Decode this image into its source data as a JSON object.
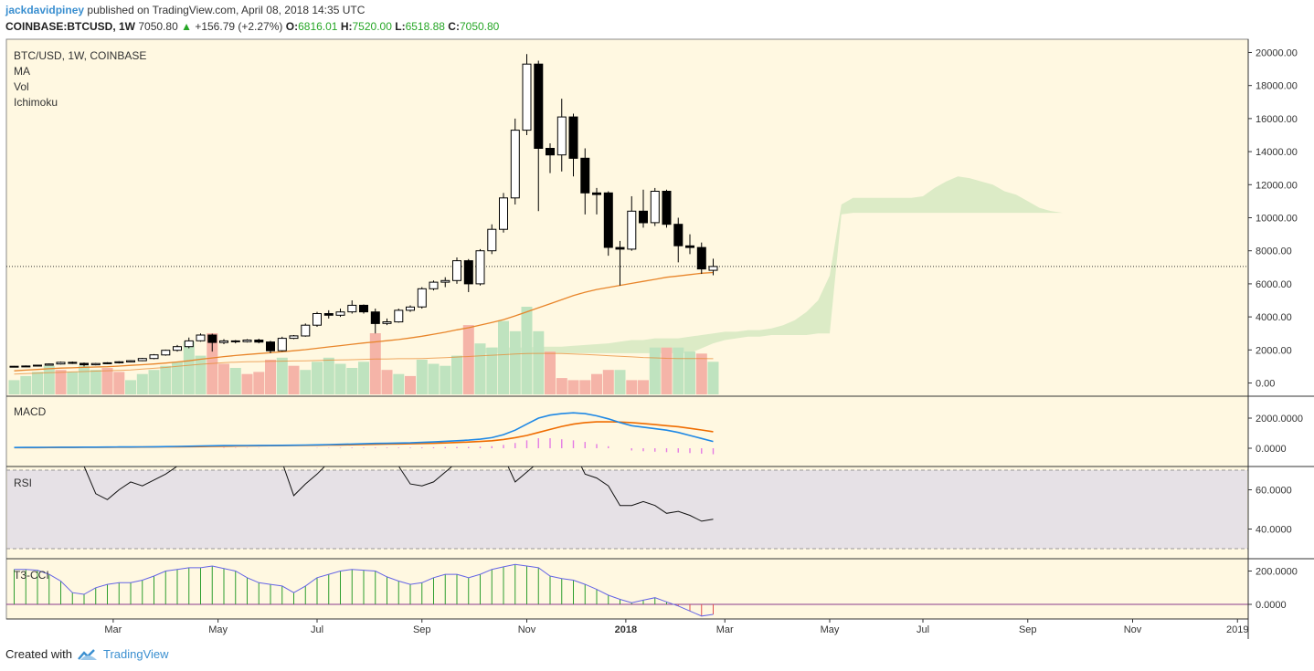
{
  "header": {
    "author": "jackdavidpiney",
    "published_text": "published on TradingView.com, April 08, 2018 14:35 UTC",
    "symbol": "COINBASE:BTCUSD, 1W",
    "last": "7050.80",
    "change_arrow": "▲",
    "change": "+156.79 (+2.27%)",
    "o_label": "O:",
    "o_val": "6816.01",
    "h_label": "H:",
    "h_val": "7520.00",
    "l_label": "L:",
    "l_val": "6518.88",
    "c_label": "C:",
    "c_val": "7050.80"
  },
  "legend": {
    "title": "BTC/USD, 1W, COINBASE",
    "items": [
      "MA",
      "Vol",
      "Ichimoku"
    ]
  },
  "panes": {
    "macd": "MACD",
    "rsi": "RSI",
    "cci": "T3-CCI"
  },
  "footer": {
    "created": "Created with",
    "brand": "TradingView"
  },
  "colors": {
    "bg": "#fff8e1",
    "up_vol": "#bfe3bf",
    "down_vol": "#f5b4a8",
    "ma": "#e8852a",
    "macd": "#1e88e5",
    "signal": "#ef6c00",
    "hist": "#e47be4",
    "cloud": "#dcebc6",
    "rsi_band": "#e6e1e6",
    "cci_line": "#6464e6",
    "cci_bar": "#2e9e2e"
  },
  "chart_data": {
    "type": "candlestick",
    "price_axis": {
      "ticks": [
        "20000.00",
        "18000.00",
        "16000.00",
        "14000.00",
        "12000.00",
        "10000.00",
        "8000.00",
        "6000.00",
        "4000.00",
        "2000.00",
        "0.00"
      ],
      "ylim": [
        -800,
        20800
      ]
    },
    "macd_axis": {
      "ticks": [
        "2000.0000",
        "0.0000"
      ]
    },
    "rsi_axis": {
      "ticks": [
        "60.0000",
        "40.0000"
      ],
      "band": [
        30,
        70
      ]
    },
    "cci_axis": {
      "ticks": [
        "200.0000",
        "0.0000"
      ]
    },
    "time_axis": [
      {
        "label": "Mar",
        "week": 8.5
      },
      {
        "label": "May",
        "week": 17.5
      },
      {
        "label": "Jul",
        "week": 26
      },
      {
        "label": "Sep",
        "week": 35
      },
      {
        "label": "Nov",
        "week": 44
      },
      {
        "label": "2018",
        "week": 52.5,
        "bold": true
      },
      {
        "label": "Mar",
        "week": 61
      },
      {
        "label": "May",
        "week": 70
      },
      {
        "label": "Jul",
        "week": 78
      },
      {
        "label": "Sep",
        "week": 87
      },
      {
        "label": "Nov",
        "week": 96
      },
      {
        "label": "2019",
        "week": 105
      }
    ],
    "current_price": 7050.8,
    "candles": [
      [
        1000,
        1010,
        980,
        1030
      ],
      [
        1010,
        1030,
        990,
        1060
      ],
      [
        1030,
        1080,
        1020,
        1100
      ],
      [
        1080,
        1150,
        1060,
        1180
      ],
      [
        1150,
        1250,
        1120,
        1290
      ],
      [
        1250,
        1190,
        1150,
        1300
      ],
      [
        1190,
        1100,
        1000,
        1240
      ],
      [
        1100,
        1180,
        1070,
        1210
      ],
      [
        1180,
        1220,
        1150,
        1260
      ],
      [
        1220,
        1280,
        1180,
        1320
      ],
      [
        1280,
        1350,
        1250,
        1380
      ],
      [
        1350,
        1480,
        1320,
        1520
      ],
      [
        1480,
        1700,
        1440,
        1750
      ],
      [
        1700,
        1980,
        1650,
        2020
      ],
      [
        1980,
        2200,
        1900,
        2300
      ],
      [
        2200,
        2550,
        2100,
        2750
      ],
      [
        2550,
        2900,
        2500,
        3000
      ],
      [
        2900,
        2450,
        1900,
        2980
      ],
      [
        2450,
        2550,
        2350,
        2650
      ],
      [
        2550,
        2500,
        2400,
        2600
      ],
      [
        2500,
        2600,
        2450,
        2650
      ],
      [
        2600,
        2480,
        2400,
        2680
      ],
      [
        2480,
        1950,
        1800,
        2550
      ],
      [
        1950,
        2700,
        1900,
        2800
      ],
      [
        2700,
        2850,
        2650,
        2900
      ],
      [
        2850,
        3500,
        2800,
        3600
      ],
      [
        3500,
        4200,
        3400,
        4300
      ],
      [
        4200,
        4100,
        3900,
        4400
      ],
      [
        4100,
        4300,
        4000,
        4500
      ],
      [
        4300,
        4700,
        4200,
        5000
      ],
      [
        4700,
        4300,
        4200,
        4750
      ],
      [
        4300,
        3600,
        3000,
        4500
      ],
      [
        3600,
        3700,
        3500,
        3900
      ],
      [
        3700,
        4400,
        3650,
        4500
      ],
      [
        4400,
        4600,
        4300,
        4700
      ],
      [
        4600,
        5700,
        4500,
        5800
      ],
      [
        5700,
        6100,
        5600,
        6200
      ],
      [
        6100,
        6200,
        5800,
        6400
      ],
      [
        6200,
        7400,
        6000,
        7600
      ],
      [
        7400,
        6000,
        5500,
        7500
      ],
      [
        6000,
        8000,
        5900,
        8100
      ],
      [
        8000,
        9300,
        7800,
        9600
      ],
      [
        9300,
        11200,
        9100,
        11500
      ],
      [
        11200,
        15300,
        10800,
        16000
      ],
      [
        15300,
        19300,
        15000,
        19900
      ],
      [
        19300,
        14200,
        10400,
        19500
      ],
      [
        14200,
        13800,
        12700,
        14500
      ],
      [
        13800,
        16100,
        12800,
        17200
      ],
      [
        16100,
        13600,
        12500,
        16300
      ],
      [
        13600,
        11500,
        10200,
        14200
      ],
      [
        11500,
        11400,
        10200,
        11800
      ],
      [
        11500,
        8200,
        7700,
        11600
      ],
      [
        8200,
        8100,
        5900,
        8600
      ],
      [
        8100,
        10400,
        8000,
        11300
      ],
      [
        10400,
        9700,
        9400,
        11700
      ],
      [
        9700,
        11600,
        9500,
        11800
      ],
      [
        11600,
        9600,
        9400,
        11700
      ],
      [
        9600,
        8300,
        7300,
        10000
      ],
      [
        8300,
        8200,
        7800,
        9000
      ],
      [
        8200,
        6900,
        6600,
        8500
      ],
      [
        6816,
        7050,
        6518,
        7520
      ]
    ],
    "volume": [
      [
        700,
        1
      ],
      [
        900,
        1
      ],
      [
        1100,
        1
      ],
      [
        1400,
        1
      ],
      [
        1200,
        0
      ],
      [
        1100,
        1
      ],
      [
        1400,
        1
      ],
      [
        1200,
        1
      ],
      [
        1300,
        0
      ],
      [
        1100,
        0
      ],
      [
        700,
        1
      ],
      [
        1000,
        1
      ],
      [
        1200,
        1
      ],
      [
        1400,
        1
      ],
      [
        1600,
        1
      ],
      [
        2600,
        1
      ],
      [
        1900,
        1
      ],
      [
        3000,
        0
      ],
      [
        1500,
        0
      ],
      [
        1300,
        1
      ],
      [
        1000,
        0
      ],
      [
        1100,
        0
      ],
      [
        1700,
        0
      ],
      [
        1800,
        1
      ],
      [
        1400,
        0
      ],
      [
        1200,
        1
      ],
      [
        1600,
        1
      ],
      [
        1800,
        1
      ],
      [
        1500,
        1
      ],
      [
        1300,
        1
      ],
      [
        1600,
        1
      ],
      [
        3000,
        0
      ],
      [
        1200,
        0
      ],
      [
        1000,
        1
      ],
      [
        900,
        0
      ],
      [
        1700,
        1
      ],
      [
        1500,
        1
      ],
      [
        1400,
        1
      ],
      [
        1900,
        1
      ],
      [
        3400,
        0
      ],
      [
        2500,
        1
      ],
      [
        2300,
        1
      ],
      [
        3600,
        1
      ],
      [
        3100,
        1
      ],
      [
        4300,
        1
      ],
      [
        3100,
        1
      ],
      [
        2100,
        0
      ],
      [
        800,
        0
      ],
      [
        700,
        0
      ],
      [
        700,
        0
      ],
      [
        1000,
        0
      ],
      [
        1200,
        0
      ],
      [
        1200,
        1
      ],
      [
        700,
        0
      ],
      [
        700,
        0
      ],
      [
        2300,
        1
      ],
      [
        2300,
        0
      ],
      [
        2300,
        1
      ],
      [
        2100,
        1
      ],
      [
        2000,
        0
      ],
      [
        1600,
        1
      ]
    ],
    "ma_short": [
      900,
      950,
      1000,
      1050,
      1100,
      1120,
      1150,
      1180,
      1200,
      1250,
      1300,
      1350,
      1400,
      1470,
      1550,
      1640,
      1750,
      1850,
      1950,
      2030,
      2100,
      2170,
      2230,
      2300,
      2380,
      2460,
      2560,
      2660,
      2760,
      2860,
      2950,
      3030,
      3120,
      3210,
      3320,
      3450,
      3600,
      3750,
      3920,
      4080,
      4270,
      4470,
      4680,
      4950,
      5250,
      5550,
      5850,
      6150,
      6450,
      6700,
      6900,
      7050,
      7200,
      7350,
      7500,
      7650,
      7800,
      7900,
      8000,
      8100,
      8150
    ],
    "vol_ma": [
      1000,
      1020,
      1040,
      1060,
      1080,
      1100,
      1120,
      1140,
      1160,
      1180,
      1200,
      1240,
      1280,
      1320,
      1380,
      1430,
      1480,
      1520,
      1560,
      1580,
      1600,
      1610,
      1620,
      1630,
      1640,
      1650,
      1660,
      1680,
      1690,
      1700,
      1720,
      1740,
      1740,
      1750,
      1750,
      1760,
      1780,
      1800,
      1830,
      1860,
      1890,
      1920,
      1950,
      1980,
      2000,
      2010,
      2010,
      2000,
      1980,
      1960,
      1930,
      1900,
      1870,
      1840,
      1810,
      1790,
      1770,
      1760,
      1760,
      1760,
      1750
    ],
    "cloud": {
      "start": 40,
      "upper": [
        2100,
        2150,
        2150,
        2150,
        2150,
        2200,
        2200,
        2200,
        2250,
        2300,
        2350,
        2400,
        2500,
        2600,
        2600,
        2700,
        2700,
        2700,
        2800,
        2900,
        3000,
        3100,
        3100,
        3200,
        3200,
        3300,
        3500,
        3800,
        4300,
        5000,
        6500,
        10800,
        11200,
        11200,
        11200,
        11200,
        11200,
        11200,
        11300,
        11800,
        12200,
        12500,
        12400,
        12200,
        12000,
        11600,
        11400,
        11000,
        10600,
        10400,
        10300,
        10300,
        10300
      ],
      "lower": [
        1800,
        1800,
        1800,
        1800,
        1800,
        1800,
        1800,
        1800,
        1800,
        1800,
        1800,
        1800,
        1800,
        1800,
        1800,
        1800,
        1800,
        1800,
        1800,
        2100,
        2400,
        2600,
        2700,
        2800,
        2800,
        2900,
        2900,
        2900,
        2900,
        3000,
        3000,
        10200,
        10300,
        10300,
        10300,
        10300,
        10300,
        10300,
        10300,
        10300,
        10300,
        10300,
        10300,
        10300,
        10300,
        10300,
        10300,
        10300,
        10300,
        10300,
        10300,
        10300,
        10300
      ]
    },
    "macd": [
      50,
      52,
      55,
      60,
      64,
      68,
      70,
      74,
      78,
      82,
      86,
      92,
      100,
      110,
      120,
      135,
      150,
      165,
      175,
      180,
      182,
      186,
      190,
      195,
      200,
      210,
      225,
      240,
      260,
      280,
      300,
      320,
      330,
      345,
      360,
      390,
      420,
      460,
      500,
      540,
      600,
      700,
      900,
      1200,
      1600,
      2000,
      2200,
      2300,
      2350,
      2300,
      2150,
      1950,
      1700,
      1500,
      1400,
      1300,
      1200,
      1050,
      850,
      650,
      450
    ],
    "signal": [
      40,
      42,
      45,
      48,
      52,
      56,
      60,
      63,
      67,
      71,
      74,
      78,
      83,
      88,
      95,
      102,
      112,
      122,
      133,
      143,
      153,
      162,
      170,
      178,
      185,
      192,
      200,
      210,
      220,
      232,
      245,
      260,
      270,
      285,
      300,
      315,
      330,
      350,
      380,
      410,
      450,
      500,
      580,
      700,
      850,
      1050,
      1250,
      1450,
      1600,
      1700,
      1750,
      1760,
      1740,
      1700,
      1640,
      1570,
      1500,
      1430,
      1320,
      1210,
      1100
    ],
    "macd_hist": [
      0,
      0,
      0,
      0,
      0,
      0,
      0,
      0,
      0,
      0,
      0,
      0,
      0,
      0,
      0,
      0,
      0,
      0,
      0,
      0,
      0,
      0,
      0,
      0,
      0,
      0,
      0,
      0,
      0,
      0,
      0,
      0,
      0,
      0,
      0,
      0,
      0,
      0,
      0,
      0,
      0,
      0,
      0,
      0,
      0,
      0,
      0,
      0,
      0,
      0,
      0,
      0,
      0,
      -150,
      -200,
      -230,
      -260,
      -290,
      -320,
      -360,
      -400
    ],
    "rsi": [
      82,
      80,
      78,
      80,
      78,
      76,
      72,
      58,
      55,
      60,
      64,
      62,
      65,
      68,
      72,
      76,
      79,
      78,
      80,
      81,
      80,
      79,
      77,
      74,
      57,
      63,
      68,
      74,
      79,
      78,
      80,
      81,
      79,
      72,
      63,
      62,
      64,
      69,
      74,
      77,
      78,
      79,
      77,
      64,
      69,
      74,
      78,
      80,
      80,
      68,
      66,
      62,
      52,
      52,
      54,
      52,
      48,
      49,
      47,
      44,
      45
    ],
    "cci": [
      210,
      210,
      205,
      180,
      140,
      70,
      60,
      100,
      120,
      130,
      130,
      145,
      170,
      200,
      210,
      220,
      220,
      230,
      215,
      200,
      160,
      130,
      120,
      110,
      70,
      110,
      160,
      180,
      200,
      210,
      205,
      200,
      165,
      140,
      120,
      130,
      160,
      180,
      180,
      160,
      180,
      210,
      225,
      240,
      230,
      220,
      170,
      155,
      145,
      120,
      90,
      55,
      30,
      10,
      25,
      40,
      15,
      -10,
      -40,
      -70,
      -60
    ],
    "cci_hist": [
      1,
      1,
      1,
      1,
      1,
      1,
      1,
      1,
      1,
      1,
      1,
      1,
      1,
      1,
      1,
      1,
      1,
      1,
      1,
      1,
      1,
      1,
      1,
      1,
      1,
      1,
      1,
      1,
      1,
      1,
      1,
      1,
      1,
      1,
      1,
      1,
      1,
      1,
      1,
      1,
      1,
      1,
      1,
      1,
      1,
      1,
      1,
      1,
      1,
      1,
      1,
      1,
      1,
      1,
      1,
      1,
      1,
      1,
      -1,
      -1,
      -1
    ]
  }
}
